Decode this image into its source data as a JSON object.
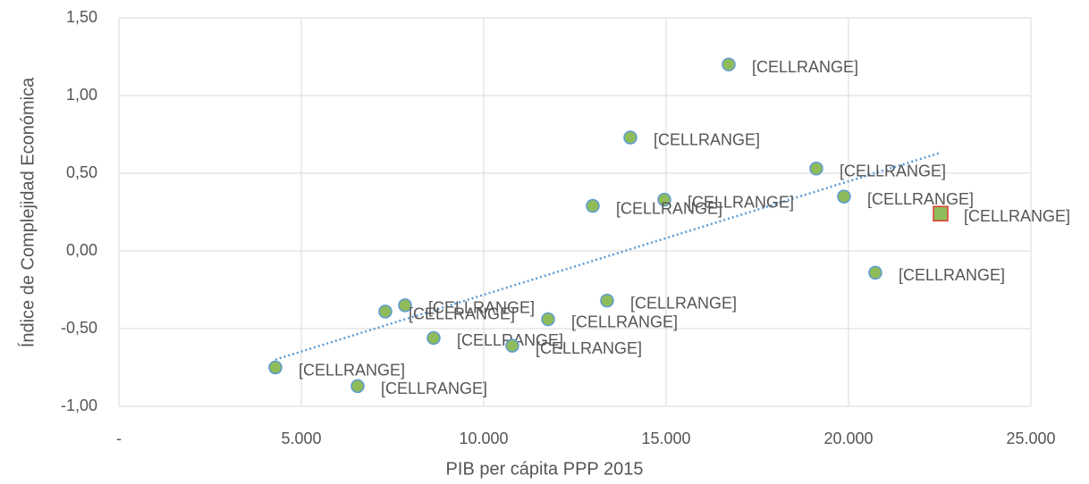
{
  "chart_data": {
    "type": "scatter",
    "xlabel": "PIB per cápita PPP 2015",
    "ylabel": "Índice de Complejidad Económica",
    "xlim": [
      0,
      25000
    ],
    "xticks": [
      {
        "value": 0,
        "label": "-"
      },
      {
        "value": 5000,
        "label": "5.000"
      },
      {
        "value": 10000,
        "label": "10.000"
      },
      {
        "value": 15000,
        "label": "15.000"
      },
      {
        "value": 20000,
        "label": "20.000"
      },
      {
        "value": 25000,
        "label": "25.000"
      }
    ],
    "ylim": [
      -1,
      1.5
    ],
    "yticks": [
      {
        "value": -1,
        "label": "-1,00"
      },
      {
        "value": -0.5,
        "label": "-0,50"
      },
      {
        "value": 0,
        "label": "0,00"
      },
      {
        "value": 0.5,
        "label": "0,50"
      },
      {
        "value": 1,
        "label": "1,00"
      },
      {
        "value": 1.5,
        "label": "1,50"
      }
    ],
    "grid": true,
    "series": [
      {
        "color": "#8fbc5a",
        "edgecolor": "#5b9bd5",
        "marker": "circle",
        "x": [
          16716,
          14020,
          19118,
          19877,
          14951,
          12990,
          20735,
          13382,
          11765,
          7843,
          7304,
          8627,
          10784,
          4289,
          6544
        ],
        "values": [
          1.2,
          0.73,
          0.53,
          0.35,
          0.33,
          0.29,
          -0.14,
          -0.32,
          -0.44,
          -0.35,
          -0.39,
          -0.56,
          -0.61,
          -0.75,
          -0.87
        ],
        "labels": [
          "[CELLRANGE]",
          "[CELLRANGE]",
          "[CELLRANGE]",
          "[CELLRANGE]",
          "[CELLRANGE]",
          "[CELLRANGE]",
          "[CELLRANGE]",
          "[CELLRANGE]",
          "[CELLRANGE]",
          "[CELLRANGE]",
          "[CELLRANGE]",
          "[CELLRANGE]",
          "[CELLRANGE]",
          "[CELLRANGE]",
          "[CELLRANGE]"
        ]
      },
      {
        "color": "#8fbc5a",
        "edgecolor": "#e03c31",
        "marker": "square",
        "x": [
          22525
        ],
        "values": [
          0.24
        ],
        "labels": [
          "[CELLRANGE]"
        ]
      }
    ],
    "trendline": {
      "type": "linear",
      "color": "#5b9bd5"
    }
  }
}
